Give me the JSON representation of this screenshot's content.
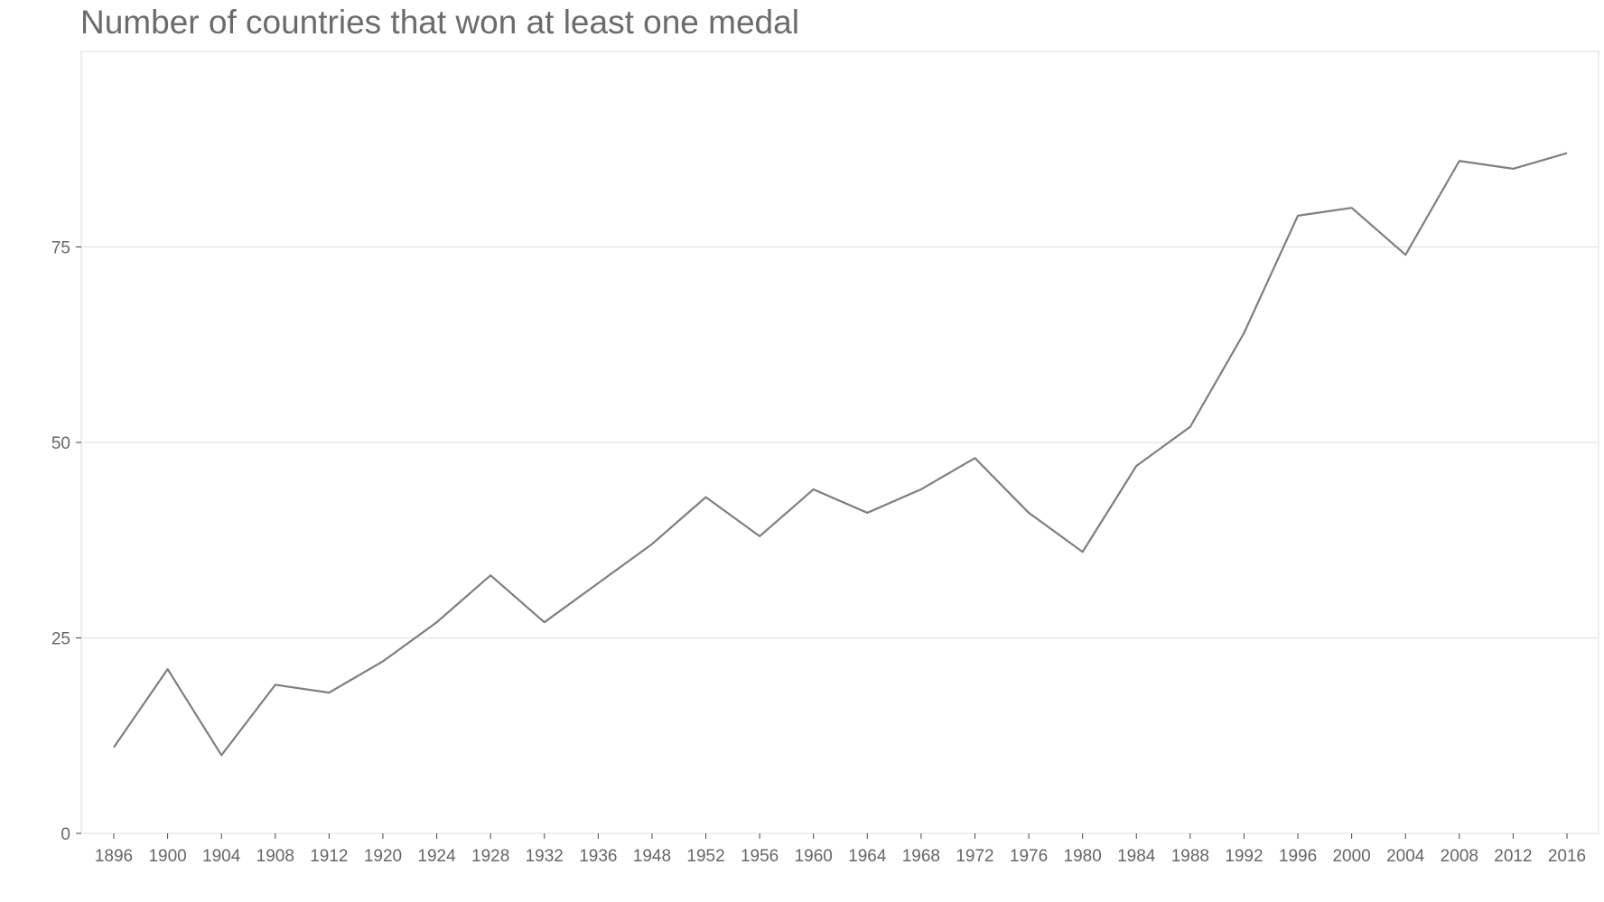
{
  "chart_data": {
    "type": "line",
    "title": "Number of countries that won at least one medal",
    "xlabel": "",
    "ylabel": "",
    "categories": [
      "1896",
      "1900",
      "1904",
      "1908",
      "1912",
      "1920",
      "1924",
      "1928",
      "1932",
      "1936",
      "1948",
      "1952",
      "1956",
      "1960",
      "1964",
      "1968",
      "1972",
      "1976",
      "1980",
      "1984",
      "1988",
      "1992",
      "1996",
      "2000",
      "2004",
      "2008",
      "2012",
      "2016"
    ],
    "series": [
      {
        "values": [
          11,
          21,
          10,
          19,
          18,
          22,
          27,
          33,
          27,
          32,
          37,
          43,
          38,
          44,
          41,
          44,
          48,
          41,
          36,
          47,
          52,
          64,
          79,
          80,
          74,
          86,
          85,
          87
        ]
      }
    ],
    "ylim": [
      0,
      100
    ],
    "yticks": [
      "0",
      "25",
      "50",
      "75"
    ],
    "grid": "horizontal",
    "line_color": "#7f7f7f",
    "grid_color": "#dedede",
    "text_color": "#666666"
  }
}
